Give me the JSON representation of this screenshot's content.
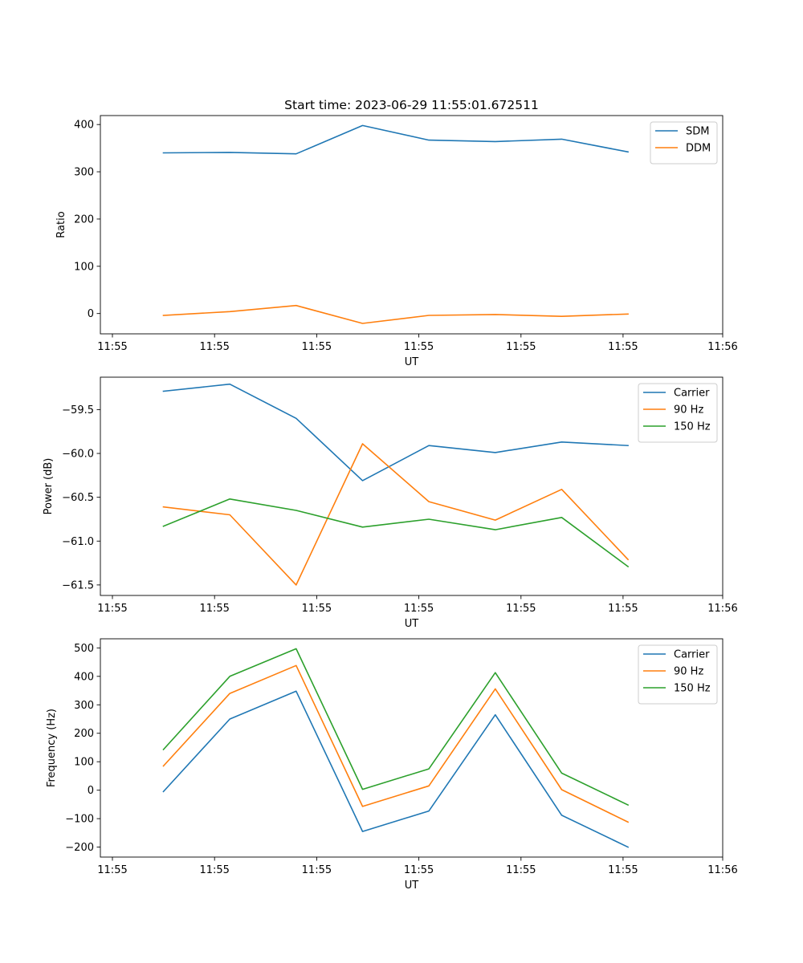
{
  "figure_title": "Start time: 2023-06-29 11:55:01.672511",
  "colors": {
    "blue": "#1f77b4",
    "orange": "#ff7f0e",
    "green": "#2ca02c"
  },
  "chart_data": [
    {
      "type": "line",
      "title": "Start time: 2023-06-29 11:55:01.672511",
      "xlabel": "UT",
      "ylabel": "Ratio",
      "x_tick_labels": [
        "11:55",
        "11:55",
        "11:55",
        "11:55",
        "11:55",
        "11:55",
        "11:56"
      ],
      "y_ticks": [
        0,
        100,
        200,
        300,
        400
      ],
      "y_tick_labels": [
        "0",
        "100",
        "200",
        "300",
        "400"
      ],
      "ylim": [
        -43,
        419
      ],
      "legend": "top-right",
      "grid": false,
      "x_index": [
        0,
        1,
        2,
        3,
        4,
        5,
        6,
        7
      ],
      "series": [
        {
          "name": "SDM",
          "color": "#1f77b4",
          "values": [
            340,
            341,
            338,
            398,
            367,
            364,
            369,
            342
          ]
        },
        {
          "name": "DDM",
          "color": "#ff7f0e",
          "values": [
            -4,
            4,
            17,
            -21,
            -4,
            -2,
            -6,
            -1
          ]
        }
      ]
    },
    {
      "type": "line",
      "xlabel": "UT",
      "ylabel": "Power (dB)",
      "x_tick_labels": [
        "11:55",
        "11:55",
        "11:55",
        "11:55",
        "11:55",
        "11:55",
        "11:56"
      ],
      "y_ticks": [
        -59.5,
        -60.0,
        -60.5,
        -61.0,
        -61.5
      ],
      "y_tick_labels": [
        "−59.5",
        "−60.0",
        "−60.5",
        "−61.0",
        "−61.5"
      ],
      "ylim": [
        -61.62,
        -59.13
      ],
      "legend": "top-right",
      "grid": false,
      "x_index": [
        0,
        1,
        2,
        3,
        4,
        5,
        6,
        7
      ],
      "series": [
        {
          "name": "Carrier",
          "color": "#1f77b4",
          "values": [
            -59.29,
            -59.21,
            -59.6,
            -60.31,
            -59.91,
            -59.99,
            -59.87,
            -59.91
          ]
        },
        {
          "name": "90 Hz",
          "color": "#ff7f0e",
          "values": [
            -60.61,
            -60.7,
            -61.5,
            -59.89,
            -60.55,
            -60.76,
            -60.41,
            -61.21
          ]
        },
        {
          "name": "150 Hz",
          "color": "#2ca02c",
          "values": [
            -60.83,
            -60.52,
            -60.65,
            -60.84,
            -60.75,
            -60.87,
            -60.73,
            -61.29
          ]
        }
      ]
    },
    {
      "type": "line",
      "xlabel": "UT",
      "ylabel": "Frequency (Hz)",
      "x_tick_labels": [
        "11:55",
        "11:55",
        "11:55",
        "11:55",
        "11:55",
        "11:55",
        "11:56"
      ],
      "y_ticks": [
        500,
        400,
        300,
        200,
        100,
        0,
        -100,
        -200
      ],
      "y_tick_labels": [
        "500",
        "400",
        "300",
        "200",
        "100",
        "0",
        "−100",
        "−200"
      ],
      "ylim": [
        -235,
        532
      ],
      "legend": "top-right",
      "grid": false,
      "x_index": [
        0,
        1,
        2,
        3,
        4,
        5,
        6,
        7
      ],
      "series": [
        {
          "name": "Carrier",
          "color": "#1f77b4",
          "values": [
            -5,
            250,
            348,
            -145,
            -73,
            265,
            -88,
            -200
          ]
        },
        {
          "name": "90 Hz",
          "color": "#ff7f0e",
          "values": [
            85,
            340,
            438,
            -57,
            15,
            356,
            2,
            -112
          ]
        },
        {
          "name": "150 Hz",
          "color": "#2ca02c",
          "values": [
            143,
            400,
            497,
            3,
            75,
            413,
            60,
            -52
          ]
        }
      ]
    }
  ]
}
